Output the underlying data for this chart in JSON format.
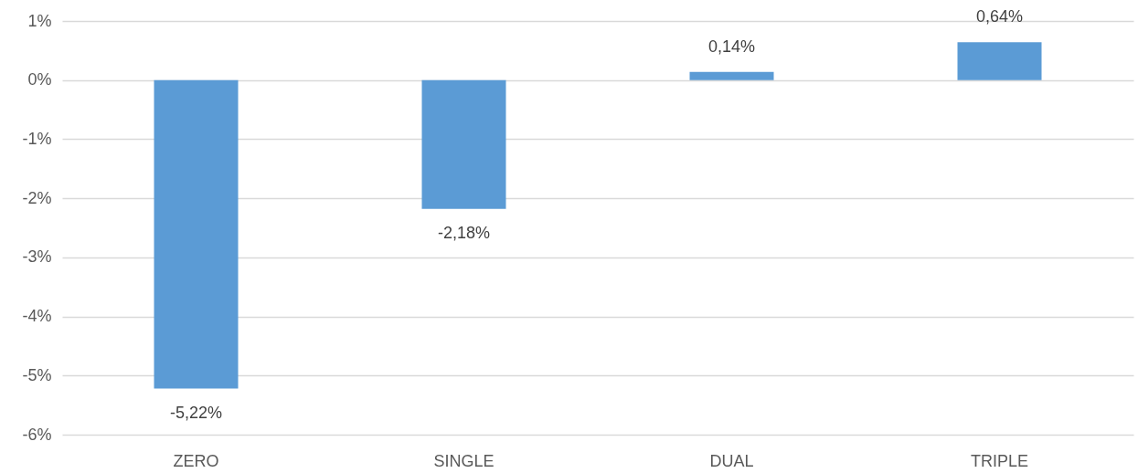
{
  "chart_data": {
    "type": "bar",
    "categories": [
      "ZERO",
      "SINGLE",
      "DUAL",
      "TRIPLE"
    ],
    "values": [
      -5.22,
      -2.18,
      0.14,
      0.64
    ],
    "color": "#5b9bd5",
    "value_labels": [
      "-5,22%",
      "-2,18%",
      "0,14%",
      "0,64%"
    ],
    "ylim": [
      -6,
      1
    ],
    "yticks": [
      {
        "value": -6,
        "label": "-6%"
      },
      {
        "value": -5,
        "label": "-5%"
      },
      {
        "value": -4,
        "label": "-4%"
      },
      {
        "value": -3,
        "label": "-3%"
      },
      {
        "value": -2,
        "label": "-2%"
      },
      {
        "value": -1,
        "label": "-1%"
      },
      {
        "value": 0,
        "label": "0%"
      },
      {
        "value": 1,
        "label": "1%"
      }
    ],
    "grid": "y"
  }
}
